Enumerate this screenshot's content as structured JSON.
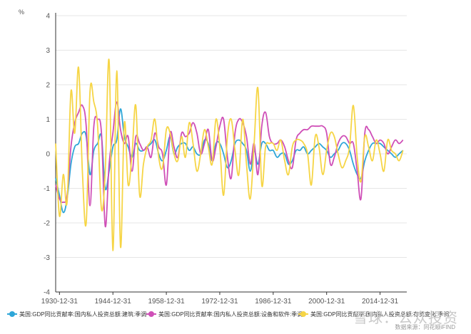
{
  "chart_data": {
    "type": "line",
    "title": "",
    "unit_label": "%",
    "ylim": [
      -4,
      4
    ],
    "yticks": [
      -4,
      -3,
      -2,
      -1,
      0,
      1,
      2,
      3,
      4
    ],
    "xlim": [
      1929,
      2021
    ],
    "xtick_labels": [
      "1930-12-31",
      "1944-12-31",
      "1958-12-31",
      "1972-12-31",
      "1986-12-31",
      "2000-12-31",
      "2014-12-31"
    ],
    "xtick_years": [
      1930,
      1944,
      1958,
      1972,
      1986,
      2000,
      2014
    ],
    "grid": true,
    "legend_position": "bottom",
    "series": [
      {
        "name": "美国:GDP同比贡献率:国内私人投资总额:建筑:季调",
        "color": "#2ea6d8",
        "x": [
          1929,
          1930,
          1931,
          1932,
          1933,
          1934,
          1935,
          1936,
          1937,
          1938,
          1939,
          1940,
          1941,
          1942,
          1943,
          1944,
          1945,
          1946,
          1947,
          1948,
          1949,
          1950,
          1951,
          1952,
          1953,
          1954,
          1955,
          1956,
          1957,
          1958,
          1959,
          1960,
          1961,
          1962,
          1963,
          1964,
          1965,
          1966,
          1967,
          1968,
          1969,
          1970,
          1971,
          1972,
          1973,
          1974,
          1975,
          1976,
          1977,
          1978,
          1979,
          1980,
          1981,
          1982,
          1983,
          1984,
          1985,
          1986,
          1987,
          1988,
          1989,
          1990,
          1991,
          1992,
          1993,
          1994,
          1995,
          1996,
          1997,
          1998,
          1999,
          2000,
          2001,
          2002,
          2003,
          2004,
          2005,
          2006,
          2007,
          2008,
          2009,
          2010,
          2011,
          2012,
          2013,
          2014,
          2015,
          2016,
          2017,
          2018,
          2019,
          2020
        ],
        "values": [
          -0.7,
          -1.2,
          -1.7,
          -1.3,
          -0.3,
          0.2,
          0.3,
          0.6,
          0.5,
          -0.6,
          0.1,
          0.3,
          0.5,
          -1.0,
          -0.5,
          0.2,
          0.4,
          1.3,
          0.5,
          0.2,
          -0.1,
          0.3,
          0.1,
          0.1,
          0.2,
          0.3,
          0.4,
          0.0,
          -0.2,
          0.1,
          0.5,
          0.0,
          0.2,
          0.3,
          0.3,
          0.1,
          0.2,
          0.0,
          0.0,
          0.4,
          0.3,
          -0.2,
          0.3,
          0.3,
          0.0,
          -0.4,
          -0.2,
          0.3,
          0.4,
          0.3,
          0.1,
          -0.5,
          0.1,
          -0.3,
          0.3,
          0.3,
          0.1,
          0.1,
          -0.1,
          0.0,
          0.0,
          -0.3,
          -0.2,
          0.1,
          0.1,
          0.2,
          0.0,
          0.1,
          0.2,
          0.3,
          0.2,
          0.1,
          -0.1,
          0.0,
          0.1,
          0.3,
          0.3,
          0.1,
          -0.3,
          -0.6,
          -0.7,
          -0.2,
          0.1,
          0.3,
          0.3,
          0.3,
          0.2,
          0.1,
          0.0,
          -0.1,
          0.0,
          0.1
        ]
      },
      {
        "name": "美国:GDP同比贡献率:国内私人投资总额:设备和软件:季调",
        "color": "#cf4fb7",
        "x": [
          1929,
          1930,
          1931,
          1932,
          1933,
          1934,
          1935,
          1936,
          1937,
          1938,
          1939,
          1940,
          1941,
          1942,
          1943,
          1944,
          1945,
          1946,
          1947,
          1948,
          1949,
          1950,
          1951,
          1952,
          1953,
          1954,
          1955,
          1956,
          1957,
          1958,
          1959,
          1960,
          1961,
          1962,
          1963,
          1964,
          1965,
          1966,
          1967,
          1968,
          1969,
          1970,
          1971,
          1972,
          1973,
          1974,
          1975,
          1976,
          1977,
          1978,
          1979,
          1980,
          1981,
          1982,
          1983,
          1984,
          1985,
          1986,
          1987,
          1988,
          1989,
          1990,
          1991,
          1992,
          1993,
          1994,
          1995,
          1996,
          1997,
          1998,
          1999,
          2000,
          2001,
          2002,
          2003,
          2004,
          2005,
          2006,
          2007,
          2008,
          2009,
          2010,
          2011,
          2012,
          2013,
          2014,
          2015,
          2016,
          2017,
          2018,
          2019,
          2020
        ],
        "values": [
          -0.9,
          -1.3,
          -1.4,
          -1.2,
          0.2,
          0.9,
          1.2,
          1.4,
          0.8,
          -1.5,
          0.8,
          1.0,
          0.6,
          -2.1,
          -0.3,
          0.6,
          1.5,
          0.7,
          0.3,
          0.5,
          -0.5,
          0.5,
          0.3,
          0.1,
          0.2,
          -0.1,
          0.6,
          0.2,
          0.0,
          -0.9,
          0.6,
          0.2,
          -0.1,
          0.6,
          0.5,
          0.6,
          0.9,
          0.6,
          0.0,
          0.3,
          0.7,
          -0.2,
          0.2,
          0.8,
          1.0,
          -0.1,
          -0.7,
          0.6,
          1.0,
          0.9,
          0.5,
          -0.3,
          0.3,
          -0.6,
          0.8,
          1.2,
          0.5,
          0.3,
          0.3,
          0.4,
          0.2,
          -0.2,
          -0.4,
          0.4,
          0.6,
          0.7,
          0.7,
          0.8,
          0.8,
          0.8,
          0.8,
          0.6,
          -0.3,
          -0.1,
          0.3,
          0.5,
          0.5,
          0.3,
          0.3,
          -0.5,
          -1.3,
          0.6,
          0.7,
          0.5,
          0.3,
          0.4,
          0.3,
          0.0,
          0.2,
          0.4,
          0.3,
          0.4
        ]
      },
      {
        "name": "美国:GDP同比贡献率:国内私人投资总额:存货变化:季调",
        "color": "#f6d545",
        "x": [
          1929,
          1930,
          1931,
          1932,
          1933,
          1934,
          1935,
          1936,
          1937,
          1938,
          1939,
          1940,
          1941,
          1942,
          1943,
          1944,
          1945,
          1946,
          1947,
          1948,
          1949,
          1950,
          1951,
          1952,
          1953,
          1954,
          1955,
          1956,
          1957,
          1958,
          1959,
          1960,
          1961,
          1962,
          1963,
          1964,
          1965,
          1966,
          1967,
          1968,
          1969,
          1970,
          1971,
          1972,
          1973,
          1974,
          1975,
          1976,
          1977,
          1978,
          1979,
          1980,
          1981,
          1982,
          1983,
          1984,
          1985,
          1986,
          1987,
          1988,
          1989,
          1990,
          1991,
          1992,
          1993,
          1994,
          1995,
          1996,
          1997,
          1998,
          1999,
          2000,
          2001,
          2002,
          2003,
          2004,
          2005,
          2006,
          2007,
          2008,
          2009,
          2010,
          2011,
          2012,
          2013,
          2014,
          2015,
          2016,
          2017,
          2018,
          2019,
          2020
        ],
        "values": [
          0.3,
          -1.8,
          -0.6,
          -1.4,
          1.8,
          0.6,
          2.5,
          -0.5,
          -2.0,
          1.8,
          1.5,
          0.8,
          -1.6,
          -0.5,
          2.7,
          -2.8,
          2.4,
          -2.7,
          0.9,
          -0.9,
          0.0,
          1.4,
          -1.2,
          -0.3,
          0.2,
          0.4,
          1.0,
          -0.1,
          -0.4,
          0.7,
          0.6,
          0.0,
          -0.2,
          0.5,
          -0.1,
          0.9,
          0.3,
          -0.5,
          0.0,
          0.7,
          0.2,
          -0.3,
          1.0,
          0.2,
          -1.2,
          0.5,
          1.0,
          0.1,
          -0.6,
          1.0,
          -0.3,
          -1.3,
          0.3,
          1.9,
          -0.9,
          0.2,
          0.3,
          0.3,
          0.1,
          0.4,
          -0.2,
          -0.6,
          0.2,
          0.4,
          0.4,
          0.3,
          0.0,
          -0.9,
          0.5,
          0.2,
          -0.6,
          0.1,
          0.6,
          0.5,
          0.0,
          -0.4,
          -0.2,
          0.2,
          1.4,
          -0.1,
          -0.8,
          0.5,
          0.2,
          -0.2,
          0.4,
          0.0,
          -0.5,
          0.4,
          0.1,
          0.0,
          -0.2,
          0.1
        ]
      }
    ]
  },
  "footer": {
    "source_text": "数据来源：同花顺iFIND",
    "watermark_text": "雪球：公众投资"
  }
}
